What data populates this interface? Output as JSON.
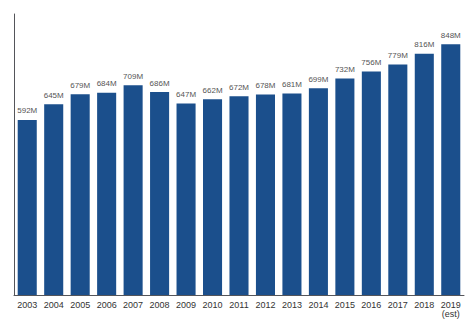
{
  "chart_data": {
    "type": "bar",
    "categories": [
      "2003",
      "2004",
      "2005",
      "2006",
      "2007",
      "2008",
      "2009",
      "2010",
      "2011",
      "2012",
      "2013",
      "2014",
      "2015",
      "2016",
      "2017",
      "2018",
      "2019\n(est)"
    ],
    "values": [
      592,
      645,
      679,
      684,
      709,
      686,
      647,
      662,
      672,
      678,
      681,
      699,
      732,
      756,
      779,
      816,
      848
    ],
    "value_labels": [
      "592M",
      "645M",
      "679M",
      "684M",
      "709M",
      "686M",
      "647M",
      "662M",
      "672M",
      "678M",
      "681M",
      "699M",
      "732M",
      "756M",
      "779M",
      "816M",
      "848M"
    ],
    "color": "#1b4f8c",
    "ylim": [
      0,
      950
    ],
    "grid": false,
    "data_labels": true,
    "tick_labels": "x"
  }
}
